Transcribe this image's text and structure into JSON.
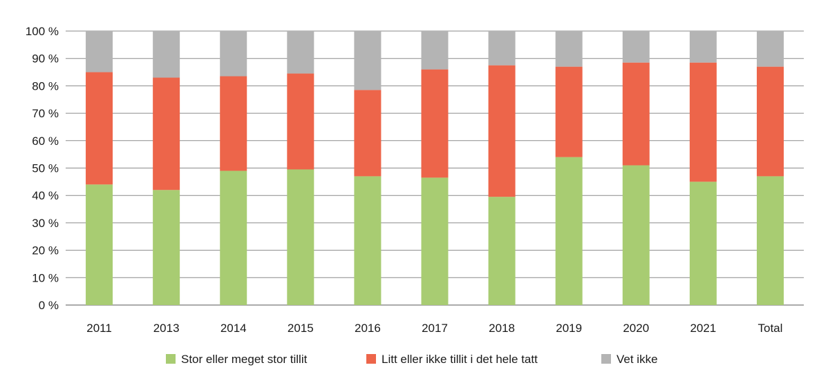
{
  "chart_data": {
    "type": "bar",
    "stacked": true,
    "title": "",
    "xlabel": "",
    "ylabel": "",
    "ylim": [
      0,
      100
    ],
    "y_tick_labels": [
      "0 %",
      "10 %",
      "20 %",
      "30 %",
      "40 %",
      "50 %",
      "60 %",
      "70 %",
      "80 %",
      "90 %",
      "100 %"
    ],
    "grid": true,
    "legend_position": "bottom",
    "categories": [
      "2011",
      "2013",
      "2014",
      "2015",
      "2016",
      "2017",
      "2018",
      "2019",
      "2020",
      "2021",
      "Total"
    ],
    "series": [
      {
        "name": "Stor eller meget stor tillit",
        "color": "#a8cc72",
        "values": [
          44,
          42,
          49,
          49.5,
          47,
          46.5,
          39.5,
          54,
          51,
          45,
          47
        ]
      },
      {
        "name": "Litt eller ikke tillit i det hele tatt",
        "color": "#ed654a",
        "values": [
          41,
          41,
          34.5,
          35,
          31.5,
          39.5,
          48,
          33,
          37.5,
          43.5,
          40
        ]
      },
      {
        "name": "Vet ikke",
        "color": "#b4b4b4",
        "values": [
          15,
          17,
          16.5,
          15.5,
          21.5,
          14,
          12.5,
          13,
          11.5,
          11.5,
          13
        ]
      }
    ]
  }
}
